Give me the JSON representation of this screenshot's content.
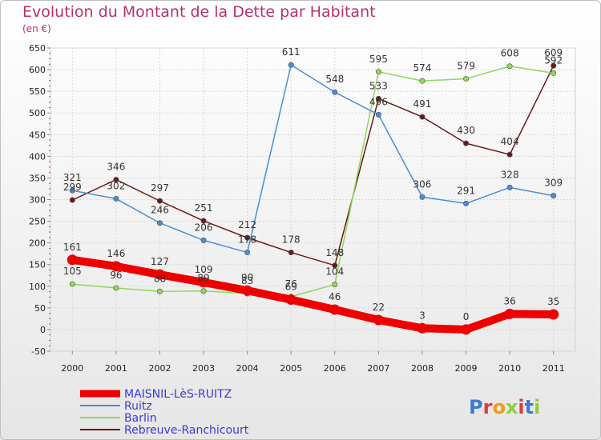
{
  "chart_data": {
    "type": "line",
    "title": "Evolution du Montant de la Dette par Habitant",
    "unit_label": "(en €)",
    "x": [
      "2000",
      "2001",
      "2002",
      "2003",
      "2004",
      "2005",
      "2006",
      "2007",
      "2008",
      "2009",
      "2010",
      "2011"
    ],
    "ylim": [
      -50,
      650
    ],
    "yticks": [
      -50,
      0,
      50,
      100,
      150,
      200,
      250,
      300,
      350,
      400,
      450,
      500,
      550,
      600,
      650
    ],
    "grid": true,
    "legend_position": "bottom-left",
    "series": [
      {
        "name": "MAISNIL-LèS-RUITZ",
        "color": "#ee0000",
        "values": [
          161,
          146,
          127,
          109,
          90,
          69,
          46,
          22,
          3,
          0,
          36,
          35
        ]
      },
      {
        "name": "Ruitz",
        "color": "#4b8ed0",
        "values": [
          321,
          302,
          246,
          206,
          178,
          611,
          548,
          496,
          306,
          291,
          328,
          309
        ]
      },
      {
        "name": "Barlin",
        "color": "#8ed85a",
        "values": [
          105,
          96,
          88,
          89,
          83,
          76,
          104,
          595,
          574,
          579,
          608,
          592
        ]
      },
      {
        "name": "Rebreuve-Ranchicourt",
        "color": "#6b1818",
        "values": [
          299,
          346,
          297,
          251,
          212,
          178,
          148,
          533,
          491,
          430,
          404,
          609
        ]
      }
    ]
  },
  "watermark": "Proxiti"
}
